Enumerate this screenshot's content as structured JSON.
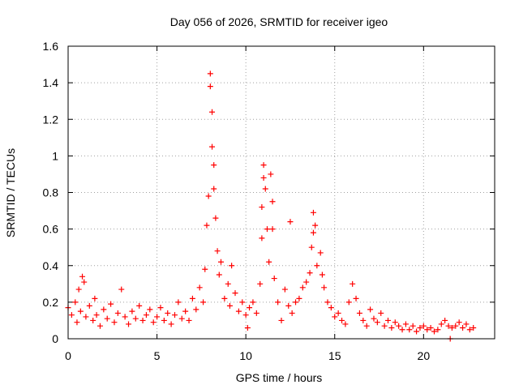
{
  "chart_data": {
    "type": "scatter",
    "title": "Day 056 of 2026, SRMTID for receiver igeo",
    "xlabel": "GPS time / hours",
    "ylabel": "SRMTID / TECUs",
    "xlim": [
      0,
      24
    ],
    "ylim": [
      0,
      1.6
    ],
    "x_ticks": [
      0,
      5,
      10,
      15,
      20
    ],
    "y_ticks": [
      0,
      0.2,
      0.4,
      0.6,
      0.8,
      1,
      1.2,
      1.4,
      1.6
    ],
    "x_tick_labels": [
      "0",
      "5",
      "10",
      "15",
      "20"
    ],
    "y_tick_labels": [
      "0",
      "0.2",
      "0.4",
      "0.6",
      "0.8",
      "1",
      "1.2",
      "1.4",
      "1.6"
    ],
    "grid": true,
    "marker": "+",
    "color": "#ff0000",
    "series": [
      {
        "name": "SRMTID",
        "points": [
          [
            0.0,
            0.17
          ],
          [
            0.2,
            0.13
          ],
          [
            0.4,
            0.2
          ],
          [
            0.5,
            0.09
          ],
          [
            0.6,
            0.27
          ],
          [
            0.7,
            0.15
          ],
          [
            0.8,
            0.34
          ],
          [
            0.9,
            0.31
          ],
          [
            1.0,
            0.12
          ],
          [
            1.2,
            0.18
          ],
          [
            1.4,
            0.1
          ],
          [
            1.5,
            0.22
          ],
          [
            1.6,
            0.13
          ],
          [
            1.8,
            0.07
          ],
          [
            2.0,
            0.16
          ],
          [
            2.2,
            0.11
          ],
          [
            2.4,
            0.19
          ],
          [
            2.6,
            0.09
          ],
          [
            2.8,
            0.14
          ],
          [
            3.0,
            0.27
          ],
          [
            3.2,
            0.12
          ],
          [
            3.4,
            0.08
          ],
          [
            3.6,
            0.15
          ],
          [
            3.8,
            0.11
          ],
          [
            4.0,
            0.18
          ],
          [
            4.2,
            0.1
          ],
          [
            4.4,
            0.13
          ],
          [
            4.6,
            0.16
          ],
          [
            4.8,
            0.09
          ],
          [
            5.0,
            0.12
          ],
          [
            5.2,
            0.17
          ],
          [
            5.4,
            0.1
          ],
          [
            5.6,
            0.14
          ],
          [
            5.8,
            0.08
          ],
          [
            6.0,
            0.13
          ],
          [
            6.2,
            0.2
          ],
          [
            6.4,
            0.11
          ],
          [
            6.6,
            0.15
          ],
          [
            6.8,
            0.1
          ],
          [
            7.0,
            0.22
          ],
          [
            7.2,
            0.16
          ],
          [
            7.4,
            0.28
          ],
          [
            7.6,
            0.2
          ],
          [
            7.7,
            0.38
          ],
          [
            7.8,
            0.62
          ],
          [
            7.9,
            0.78
          ],
          [
            8.0,
            1.38
          ],
          [
            8.0,
            1.45
          ],
          [
            8.1,
            1.24
          ],
          [
            8.1,
            1.05
          ],
          [
            8.2,
            0.95
          ],
          [
            8.2,
            0.82
          ],
          [
            8.3,
            0.66
          ],
          [
            8.4,
            0.48
          ],
          [
            8.5,
            0.35
          ],
          [
            8.6,
            0.42
          ],
          [
            8.8,
            0.22
          ],
          [
            9.0,
            0.3
          ],
          [
            9.1,
            0.18
          ],
          [
            9.2,
            0.4
          ],
          [
            9.4,
            0.25
          ],
          [
            9.6,
            0.15
          ],
          [
            9.8,
            0.2
          ],
          [
            10.0,
            0.13
          ],
          [
            10.1,
            0.06
          ],
          [
            10.2,
            0.17
          ],
          [
            10.4,
            0.2
          ],
          [
            10.6,
            0.14
          ],
          [
            10.8,
            0.3
          ],
          [
            10.9,
            0.55
          ],
          [
            10.9,
            0.72
          ],
          [
            11.0,
            0.88
          ],
          [
            11.0,
            0.95
          ],
          [
            11.1,
            0.82
          ],
          [
            11.2,
            0.6
          ],
          [
            11.3,
            0.42
          ],
          [
            11.4,
            0.9
          ],
          [
            11.5,
            0.75
          ],
          [
            11.5,
            0.6
          ],
          [
            11.6,
            0.33
          ],
          [
            11.8,
            0.2
          ],
          [
            12.0,
            0.1
          ],
          [
            12.2,
            0.27
          ],
          [
            12.4,
            0.18
          ],
          [
            12.5,
            0.64
          ],
          [
            12.6,
            0.14
          ],
          [
            12.8,
            0.2
          ],
          [
            13.0,
            0.22
          ],
          [
            13.2,
            0.28
          ],
          [
            13.4,
            0.31
          ],
          [
            13.6,
            0.36
          ],
          [
            13.7,
            0.5
          ],
          [
            13.8,
            0.58
          ],
          [
            13.8,
            0.69
          ],
          [
            13.9,
            0.62
          ],
          [
            14.0,
            0.4
          ],
          [
            14.2,
            0.47
          ],
          [
            14.3,
            0.35
          ],
          [
            14.4,
            0.28
          ],
          [
            14.6,
            0.2
          ],
          [
            14.8,
            0.17
          ],
          [
            15.0,
            0.12
          ],
          [
            15.2,
            0.14
          ],
          [
            15.4,
            0.1
          ],
          [
            15.6,
            0.08
          ],
          [
            15.8,
            0.2
          ],
          [
            16.0,
            0.3
          ],
          [
            16.2,
            0.22
          ],
          [
            16.4,
            0.14
          ],
          [
            16.6,
            0.1
          ],
          [
            16.8,
            0.07
          ],
          [
            17.0,
            0.16
          ],
          [
            17.2,
            0.11
          ],
          [
            17.4,
            0.09
          ],
          [
            17.6,
            0.14
          ],
          [
            17.8,
            0.07
          ],
          [
            18.0,
            0.1
          ],
          [
            18.2,
            0.06
          ],
          [
            18.4,
            0.09
          ],
          [
            18.6,
            0.07
          ],
          [
            18.8,
            0.05
          ],
          [
            19.0,
            0.08
          ],
          [
            19.2,
            0.05
          ],
          [
            19.4,
            0.07
          ],
          [
            19.6,
            0.04
          ],
          [
            19.8,
            0.06
          ],
          [
            20.0,
            0.07
          ],
          [
            20.2,
            0.05
          ],
          [
            20.4,
            0.06
          ],
          [
            20.6,
            0.04
          ],
          [
            20.8,
            0.05
          ],
          [
            21.0,
            0.08
          ],
          [
            21.2,
            0.1
          ],
          [
            21.4,
            0.07
          ],
          [
            21.5,
            0.0
          ],
          [
            21.6,
            0.06
          ],
          [
            21.8,
            0.07
          ],
          [
            22.0,
            0.09
          ],
          [
            22.2,
            0.06
          ],
          [
            22.4,
            0.08
          ],
          [
            22.6,
            0.05
          ],
          [
            22.8,
            0.06
          ]
        ]
      }
    ]
  }
}
